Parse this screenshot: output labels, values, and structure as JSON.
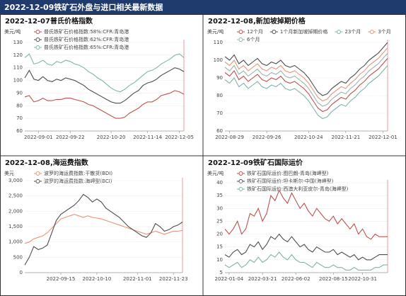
{
  "header": {
    "title": "2022-12-09铁矿石外盘与进口相关最新数据"
  },
  "chart_data": [
    {
      "type": "line",
      "title": "2022-12-07普氏价格指数",
      "y_label": "美元/吨",
      "categories": [
        null,
        null,
        null,
        "2022-09-01",
        null,
        null,
        null,
        null,
        null,
        null,
        "2022-09-22",
        null,
        null,
        null,
        null,
        null,
        null,
        null,
        null,
        "2022-10-20",
        null,
        null,
        null,
        null,
        null,
        null,
        null,
        "2022-11-14",
        null,
        null,
        null,
        null,
        null,
        null,
        "2022-12-05",
        null
      ],
      "series": [
        {
          "name": "普氏铁矿石价格指数:58%:CFR:青岛港",
          "color": "#c0504d",
          "values": [
            87,
            88,
            83,
            84,
            86,
            84,
            84,
            85,
            85,
            86,
            86,
            85,
            84,
            83,
            81,
            80,
            78,
            76,
            74,
            72,
            70,
            70,
            71,
            74,
            76,
            78,
            81,
            83,
            83,
            85,
            88,
            89,
            90,
            92,
            91,
            89
          ]
        },
        {
          "name": "普氏铁矿石价格指数:62%:CFR:青岛港",
          "color": "#4d4d4d",
          "values": [
            102,
            108,
            101,
            100,
            103,
            100,
            99,
            101,
            100,
            102,
            101,
            100,
            98,
            96,
            93,
            91,
            89,
            87,
            85,
            83,
            82,
            82,
            84,
            87,
            90,
            92,
            96,
            98,
            99,
            101,
            104,
            106,
            108,
            110,
            109,
            107
          ]
        },
        {
          "name": "普氏铁矿石价格指数:65%:CFR:青岛港",
          "color": "#7fb5a8",
          "values": [
            118,
            121,
            113,
            114,
            116,
            113,
            112,
            115,
            114,
            116,
            115,
            113,
            112,
            110,
            107,
            105,
            102,
            100,
            97,
            94,
            92,
            91,
            93,
            96,
            98,
            101,
            104,
            107,
            108,
            110,
            113,
            115,
            117,
            120,
            121,
            118
          ]
        }
      ],
      "ylim": [
        60,
        130
      ],
      "yticks": [
        60,
        70,
        80,
        90,
        100,
        110,
        120,
        130
      ],
      "grid": true
    },
    {
      "type": "line",
      "title": "2022-12-08,新加坡掉期价格",
      "y_label": "美元/吨",
      "categories": [
        null,
        "2022-08-29",
        null,
        null,
        null,
        null,
        null,
        null,
        null,
        "2022-09-26",
        null,
        null,
        null,
        null,
        null,
        null,
        null,
        null,
        "2022-10-24",
        null,
        null,
        null,
        null,
        null,
        null,
        null,
        "2022-11-21",
        null,
        null,
        null,
        null,
        null,
        null,
        null,
        "2022-12-01",
        null
      ],
      "series": [
        {
          "name": "12个月",
          "color": "#c0504d",
          "values": [
            93,
            91,
            94,
            89,
            91,
            88,
            90,
            92,
            89,
            88,
            90,
            89,
            91,
            88,
            87,
            88,
            86,
            84,
            81,
            77,
            73,
            71,
            72,
            75,
            77,
            79,
            78,
            81,
            83,
            86,
            88,
            91,
            93,
            95,
            98,
            101
          ]
        },
        {
          "name": "1个月新加坡掉期价格",
          "color": "#4d4d4d",
          "values": [
            102,
            100,
            103,
            98,
            100,
            97,
            99,
            101,
            98,
            97,
            99,
            98,
            100,
            97,
            96,
            97,
            95,
            93,
            90,
            86,
            82,
            80,
            81,
            84,
            86,
            88,
            87,
            90,
            92,
            95,
            97,
            100,
            102,
            104,
            107,
            110
          ]
        },
        {
          "name": "23个月",
          "color": "#7fb5a8",
          "values": [
            89,
            87,
            90,
            85,
            87,
            84,
            86,
            88,
            85,
            84,
            86,
            85,
            87,
            84,
            83,
            84,
            82,
            80,
            77,
            73,
            69,
            67,
            68,
            71,
            73,
            75,
            74,
            77,
            79,
            82,
            84,
            87,
            89,
            91,
            94,
            97
          ]
        },
        {
          "name": "3个月",
          "color": "#e8967a",
          "values": [
            99,
            97,
            100,
            95,
            97,
            94,
            96,
            98,
            95,
            94,
            96,
            95,
            97,
            94,
            93,
            94,
            92,
            90,
            87,
            83,
            79,
            77,
            78,
            81,
            83,
            85,
            84,
            87,
            89,
            92,
            94,
            97,
            99,
            101,
            104,
            107
          ]
        },
        {
          "name": "6个月",
          "color": "#9fb3ab",
          "values": [
            96,
            94,
            97,
            92,
            94,
            91,
            93,
            95,
            92,
            91,
            93,
            92,
            94,
            91,
            90,
            91,
            89,
            87,
            84,
            80,
            76,
            74,
            75,
            78,
            80,
            82,
            81,
            84,
            86,
            89,
            91,
            94,
            96,
            98,
            101,
            104
          ]
        }
      ],
      "ylim": [
        60,
        110
      ],
      "yticks": [
        60,
        70,
        80,
        90,
        100,
        110
      ],
      "grid": true
    },
    {
      "type": "line",
      "title": "2022-12-08,海运费指数",
      "y_label": "美元",
      "categories": [
        null,
        null,
        null,
        null,
        null,
        null,
        null,
        null,
        "2022-09-15",
        null,
        null,
        null,
        null,
        null,
        null,
        null,
        "2022-10-10",
        null,
        null,
        null,
        null,
        null,
        null,
        null,
        null,
        "2022-11-01",
        null,
        null,
        null,
        null,
        null,
        null,
        null,
        "2022-11-23",
        null,
        null
      ],
      "series": [
        {
          "name": "波罗的海运费指数:干散货(BDI)",
          "color": "#e8967a",
          "values": [
            950,
            1000,
            1100,
            1150,
            1200,
            1300,
            1450,
            1600,
            1750,
            1800,
            1850,
            1900,
            1850,
            1800,
            1850,
            1800,
            1780,
            1750,
            1700,
            1650,
            1600,
            1550,
            1500,
            1450,
            1400,
            1350,
            1300,
            1250,
            1300,
            1350,
            1300,
            1250,
            1300,
            1350,
            1350,
            1380
          ]
        },
        {
          "name": "波罗的海运费指数:海岬型(BCI)",
          "color": "#4d4d4d",
          "values": [
            250,
            500,
            850,
            750,
            800,
            900,
            1300,
            1700,
            1900,
            2000,
            2100,
            2200,
            2350,
            2550,
            2450,
            2300,
            2400,
            2300,
            2100,
            2000,
            1900,
            1800,
            1650,
            1500,
            1400,
            1300,
            1200,
            1150,
            1300,
            1600,
            1500,
            1350,
            1400,
            1500,
            1550,
            1650
          ]
        }
      ],
      "ylim": [
        0,
        3000
      ],
      "yticks": [
        0,
        500,
        {
          "value": 1000,
          "label": "1,000"
        },
        {
          "value": 1500,
          "label": "1,500"
        },
        {
          "value": 2000,
          "label": "2,000"
        },
        {
          "value": 2500,
          "label": "2,500"
        },
        {
          "value": 3000,
          "label": "3,000"
        }
      ],
      "grid": true
    },
    {
      "type": "line",
      "title": "2022-12-09铁矿石国际运价",
      "y_label": "美元/吨",
      "categories": [
        null,
        "2022-01-04",
        null,
        null,
        null,
        null,
        null,
        null,
        null,
        "2022-03-21",
        null,
        null,
        null,
        null,
        null,
        null,
        null,
        "2022-06-02",
        null,
        null,
        null,
        null,
        null,
        null,
        null,
        null,
        "2022-08-15",
        null,
        null,
        null,
        null,
        null,
        null,
        "2022-10-31",
        null,
        null,
        null,
        null,
        null,
        null
      ],
      "series": [
        {
          "name": "铁矿石国际运价:图巴朗-青岛(海岬型)",
          "color": "#c0504d",
          "values": [
            22,
            20,
            22,
            25,
            20,
            22,
            28,
            27,
            30,
            25,
            28,
            35,
            33,
            37,
            34,
            32,
            36,
            33,
            30,
            32,
            29,
            27,
            30,
            28,
            26,
            25,
            27,
            24,
            26,
            24,
            22,
            24,
            20,
            22,
            19,
            18,
            20,
            19,
            19,
            19
          ]
        },
        {
          "name": "铁矿石国际运价:坦卡斯尔-中国(海岬型)",
          "color": "#4d4d4d",
          "values": [
            12,
            11,
            13,
            14,
            12,
            13,
            16,
            15,
            17,
            14,
            16,
            19,
            18,
            20,
            18,
            17,
            19,
            17,
            15,
            16,
            14,
            13,
            15,
            14,
            13,
            13,
            14,
            12,
            13,
            12,
            11,
            12,
            10,
            11,
            10,
            10,
            11,
            12,
            12,
            12
          ]
        },
        {
          "name": "铁矿石国际运价:西澳大利亚皮尔-青岛(海岬型)",
          "color": "#7fb5a8",
          "values": [
            8,
            7,
            8,
            9,
            7,
            8,
            10,
            9,
            11,
            9,
            10,
            12,
            11,
            13,
            11,
            10,
            12,
            10,
            9,
            9,
            8,
            7,
            9,
            8,
            7,
            7,
            8,
            7,
            7,
            6,
            6,
            7,
            6,
            6,
            6,
            6,
            7,
            7,
            8,
            8
          ]
        }
      ],
      "ylim": [
        5,
        40
      ],
      "yticks": [
        5,
        10,
        15,
        20,
        25,
        30,
        35,
        40
      ],
      "grid": true
    }
  ]
}
